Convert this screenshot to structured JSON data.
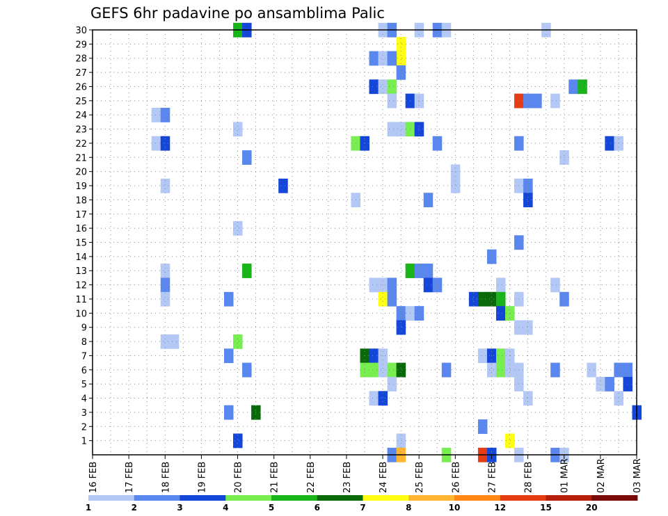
{
  "chart_data": {
    "type": "heatmap",
    "title": "GEFS 6hr padavine po ansamblima Palic",
    "xlabel": "",
    "ylabel": "",
    "grid": true,
    "x_ticks": [
      "16 FEB",
      "17 FEB",
      "18 FEB",
      "19 FEB",
      "20 FEB",
      "21 FEB",
      "22 FEB",
      "23 FEB",
      "24 FEB",
      "25 FEB",
      "26 FEB",
      "27 FEB",
      "28 FEB",
      "01 MAR",
      "02 MAR",
      "03 MAR"
    ],
    "xlim": [
      0,
      60
    ],
    "x_unit": "6-hour steps from 16 FEB 00",
    "y_ticks": [
      "1",
      "2",
      "3",
      "4",
      "5",
      "6",
      "7",
      "8",
      "9",
      "10",
      "11",
      "12",
      "13",
      "14",
      "15",
      "16",
      "17",
      "18",
      "19",
      "20",
      "21",
      "22",
      "23",
      "24",
      "25",
      "26",
      "27",
      "28",
      "29",
      "30"
    ],
    "ylim": [
      0,
      30
    ],
    "legend": {
      "placement": "bottom",
      "labels": [
        "1",
        "2",
        "3",
        "4",
        "5",
        "6",
        "7",
        "8",
        "10",
        "12",
        "15",
        "20"
      ],
      "colors": [
        "#b4c8f5",
        "#5a87ee",
        "#1446d8",
        "#78ee50",
        "#19b419",
        "#0a6a0a",
        "#ffff14",
        "#ffb432",
        "#ff8714",
        "#e63c14",
        "#b41e0a",
        "#780a0a"
      ]
    },
    "cells": [
      {
        "x": 16,
        "y": 30,
        "v": 5
      },
      {
        "x": 17,
        "y": 30,
        "v": 3
      },
      {
        "x": 32,
        "y": 30,
        "v": 1
      },
      {
        "x": 33,
        "y": 30,
        "v": 2
      },
      {
        "x": 36,
        "y": 30,
        "v": 1
      },
      {
        "x": 38,
        "y": 30,
        "v": 2
      },
      {
        "x": 39,
        "y": 30,
        "v": 1
      },
      {
        "x": 50,
        "y": 30,
        "v": 1
      },
      {
        "x": 34,
        "y": 29,
        "v": 7
      },
      {
        "x": 34,
        "y": 28,
        "v": 7
      },
      {
        "x": 31,
        "y": 28,
        "v": 2
      },
      {
        "x": 32,
        "y": 28,
        "v": 1
      },
      {
        "x": 33,
        "y": 28,
        "v": 2
      },
      {
        "x": 34,
        "y": 27,
        "v": 2
      },
      {
        "x": 31,
        "y": 26,
        "v": 3
      },
      {
        "x": 32,
        "y": 26,
        "v": 1
      },
      {
        "x": 33,
        "y": 26,
        "v": 4
      },
      {
        "x": 53,
        "y": 26,
        "v": 2
      },
      {
        "x": 54,
        "y": 26,
        "v": 5
      },
      {
        "x": 33,
        "y": 25,
        "v": 1
      },
      {
        "x": 35,
        "y": 25,
        "v": 3
      },
      {
        "x": 36,
        "y": 25,
        "v": 1
      },
      {
        "x": 47,
        "y": 25,
        "v": 12
      },
      {
        "x": 48,
        "y": 25,
        "v": 2
      },
      {
        "x": 49,
        "y": 25,
        "v": 2
      },
      {
        "x": 51,
        "y": 25,
        "v": 1
      },
      {
        "x": 7,
        "y": 24,
        "v": 1
      },
      {
        "x": 8,
        "y": 24,
        "v": 2
      },
      {
        "x": 16,
        "y": 23,
        "v": 1
      },
      {
        "x": 33,
        "y": 23,
        "v": 1
      },
      {
        "x": 34,
        "y": 23,
        "v": 1
      },
      {
        "x": 35,
        "y": 23,
        "v": 4
      },
      {
        "x": 36,
        "y": 23,
        "v": 3
      },
      {
        "x": 7,
        "y": 22,
        "v": 1
      },
      {
        "x": 8,
        "y": 22,
        "v": 3
      },
      {
        "x": 29,
        "y": 22,
        "v": 4
      },
      {
        "x": 30,
        "y": 22,
        "v": 3
      },
      {
        "x": 38,
        "y": 22,
        "v": 2
      },
      {
        "x": 47,
        "y": 22,
        "v": 2
      },
      {
        "x": 57,
        "y": 22,
        "v": 3
      },
      {
        "x": 58,
        "y": 22,
        "v": 1
      },
      {
        "x": 17,
        "y": 21,
        "v": 2
      },
      {
        "x": 52,
        "y": 21,
        "v": 1
      },
      {
        "x": 40,
        "y": 20,
        "v": 1
      },
      {
        "x": 40,
        "y": 19,
        "v": 1
      },
      {
        "x": 8,
        "y": 19,
        "v": 1
      },
      {
        "x": 21,
        "y": 19,
        "v": 3
      },
      {
        "x": 47,
        "y": 19,
        "v": 1
      },
      {
        "x": 48,
        "y": 19,
        "v": 2
      },
      {
        "x": 29,
        "y": 18,
        "v": 1
      },
      {
        "x": 37,
        "y": 18,
        "v": 2
      },
      {
        "x": 48,
        "y": 18,
        "v": 3
      },
      {
        "x": 16,
        "y": 16,
        "v": 1
      },
      {
        "x": 47,
        "y": 15,
        "v": 2
      },
      {
        "x": 44,
        "y": 14,
        "v": 2
      },
      {
        "x": 8,
        "y": 13,
        "v": 1
      },
      {
        "x": 17,
        "y": 13,
        "v": 5
      },
      {
        "x": 35,
        "y": 13,
        "v": 5
      },
      {
        "x": 36,
        "y": 13,
        "v": 2
      },
      {
        "x": 37,
        "y": 13,
        "v": 2
      },
      {
        "x": 8,
        "y": 12,
        "v": 2
      },
      {
        "x": 31,
        "y": 12,
        "v": 1
      },
      {
        "x": 32,
        "y": 12,
        "v": 1
      },
      {
        "x": 33,
        "y": 12,
        "v": 2
      },
      {
        "x": 37,
        "y": 12,
        "v": 3
      },
      {
        "x": 38,
        "y": 12,
        "v": 2
      },
      {
        "x": 45,
        "y": 12,
        "v": 1
      },
      {
        "x": 51,
        "y": 12,
        "v": 1
      },
      {
        "x": 8,
        "y": 11,
        "v": 1
      },
      {
        "x": 15,
        "y": 11,
        "v": 2
      },
      {
        "x": 32,
        "y": 11,
        "v": 7
      },
      {
        "x": 33,
        "y": 11,
        "v": 2
      },
      {
        "x": 42,
        "y": 11,
        "v": 3
      },
      {
        "x": 43,
        "y": 11,
        "v": 6
      },
      {
        "x": 44,
        "y": 11,
        "v": 6
      },
      {
        "x": 45,
        "y": 11,
        "v": 5
      },
      {
        "x": 47,
        "y": 11,
        "v": 1
      },
      {
        "x": 52,
        "y": 11,
        "v": 2
      },
      {
        "x": 34,
        "y": 10,
        "v": 2
      },
      {
        "x": 35,
        "y": 10,
        "v": 1
      },
      {
        "x": 36,
        "y": 10,
        "v": 2
      },
      {
        "x": 45,
        "y": 10,
        "v": 3
      },
      {
        "x": 46,
        "y": 10,
        "v": 4
      },
      {
        "x": 34,
        "y": 9,
        "v": 3
      },
      {
        "x": 47,
        "y": 9,
        "v": 1
      },
      {
        "x": 48,
        "y": 9,
        "v": 1
      },
      {
        "x": 8,
        "y": 8,
        "v": 1
      },
      {
        "x": 9,
        "y": 8,
        "v": 1
      },
      {
        "x": 16,
        "y": 8,
        "v": 4
      },
      {
        "x": 15,
        "y": 7,
        "v": 2
      },
      {
        "x": 30,
        "y": 7,
        "v": 6
      },
      {
        "x": 31,
        "y": 7,
        "v": 3
      },
      {
        "x": 32,
        "y": 7,
        "v": 1
      },
      {
        "x": 43,
        "y": 7,
        "v": 1
      },
      {
        "x": 44,
        "y": 7,
        "v": 3
      },
      {
        "x": 45,
        "y": 7,
        "v": 4
      },
      {
        "x": 46,
        "y": 7,
        "v": 1
      },
      {
        "x": 17,
        "y": 6,
        "v": 2
      },
      {
        "x": 30,
        "y": 6,
        "v": 4
      },
      {
        "x": 31,
        "y": 6,
        "v": 4
      },
      {
        "x": 32,
        "y": 6,
        "v": 1
      },
      {
        "x": 33,
        "y": 6,
        "v": 4
      },
      {
        "x": 34,
        "y": 6,
        "v": 6
      },
      {
        "x": 39,
        "y": 6,
        "v": 2
      },
      {
        "x": 44,
        "y": 6,
        "v": 1
      },
      {
        "x": 45,
        "y": 6,
        "v": 4
      },
      {
        "x": 46,
        "y": 6,
        "v": 1
      },
      {
        "x": 47,
        "y": 6,
        "v": 1
      },
      {
        "x": 51,
        "y": 6,
        "v": 2
      },
      {
        "x": 55,
        "y": 6,
        "v": 1
      },
      {
        "x": 58,
        "y": 6,
        "v": 2
      },
      {
        "x": 59,
        "y": 6,
        "v": 2
      },
      {
        "x": 33,
        "y": 5,
        "v": 1
      },
      {
        "x": 47,
        "y": 5,
        "v": 1
      },
      {
        "x": 56,
        "y": 5,
        "v": 1
      },
      {
        "x": 57,
        "y": 5,
        "v": 2
      },
      {
        "x": 59,
        "y": 5,
        "v": 3
      },
      {
        "x": 31,
        "y": 4,
        "v": 1
      },
      {
        "x": 32,
        "y": 4,
        "v": 3
      },
      {
        "x": 48,
        "y": 4,
        "v": 1
      },
      {
        "x": 58,
        "y": 4,
        "v": 1
      },
      {
        "x": 15,
        "y": 3,
        "v": 2
      },
      {
        "x": 18,
        "y": 3,
        "v": 6
      },
      {
        "x": 60,
        "y": 3,
        "v": 3
      },
      {
        "x": 43,
        "y": 2,
        "v": 2
      },
      {
        "x": 16,
        "y": 1,
        "v": 3
      },
      {
        "x": 34,
        "y": 1,
        "v": 1
      },
      {
        "x": 46,
        "y": 1,
        "v": 7
      },
      {
        "x": 33,
        "y": 0,
        "v": 2
      },
      {
        "x": 34,
        "y": 0,
        "v": 8
      },
      {
        "x": 39,
        "y": 0,
        "v": 4
      },
      {
        "x": 43,
        "y": 0,
        "v": 12
      },
      {
        "x": 44,
        "y": 0,
        "v": 3
      },
      {
        "x": 47,
        "y": 0,
        "v": 1
      },
      {
        "x": 51,
        "y": 0,
        "v": 2
      },
      {
        "x": 52,
        "y": 0,
        "v": 1
      }
    ]
  }
}
